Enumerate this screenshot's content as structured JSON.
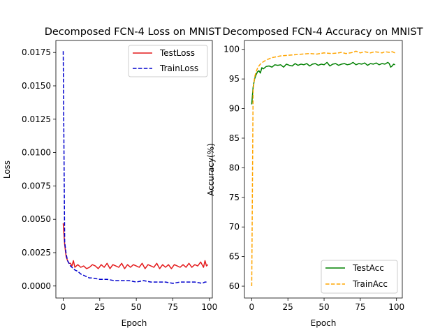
{
  "chart_data": [
    {
      "type": "line",
      "title": "Decomposed FCN-4 Loss on MNIST",
      "xlabel": "Epoch",
      "ylabel": "Loss",
      "xlim": [
        -5,
        102
      ],
      "ylim": [
        -0.0009,
        0.0184
      ],
      "xticks": [
        0,
        25,
        50,
        75,
        100
      ],
      "yticks": [
        0.0,
        0.0025,
        0.005,
        0.0075,
        0.01,
        0.0125,
        0.015,
        0.0175
      ],
      "ytick_labels": [
        "0.0000",
        "0.0025",
        "0.0050",
        "0.0075",
        "0.0100",
        "0.0125",
        "0.0150",
        "0.0175"
      ],
      "grid": false,
      "legend_position": "upper right",
      "series": [
        {
          "name": "TestLoss",
          "color": "#e41a1c",
          "dash": "solid",
          "x": [
            0,
            1,
            2,
            3,
            4,
            5,
            6,
            7,
            8,
            10,
            12,
            14,
            16,
            18,
            20,
            22,
            24,
            26,
            28,
            30,
            32,
            34,
            36,
            38,
            40,
            42,
            44,
            46,
            48,
            50,
            52,
            54,
            56,
            58,
            60,
            62,
            64,
            66,
            68,
            70,
            72,
            74,
            76,
            78,
            80,
            82,
            84,
            86,
            88,
            90,
            92,
            94,
            96,
            97,
            98,
            99
          ],
          "y": [
            0.0047,
            0.0031,
            0.0022,
            0.0019,
            0.0017,
            0.0017,
            0.0015,
            0.0019,
            0.0014,
            0.0016,
            0.0014,
            0.0015,
            0.0013,
            0.0014,
            0.0016,
            0.0015,
            0.0013,
            0.0016,
            0.0014,
            0.0017,
            0.0013,
            0.0016,
            0.0015,
            0.0014,
            0.0017,
            0.0013,
            0.0016,
            0.0014,
            0.0016,
            0.0015,
            0.0014,
            0.0017,
            0.0013,
            0.0016,
            0.0015,
            0.0014,
            0.0017,
            0.0013,
            0.0016,
            0.0014,
            0.0016,
            0.0013,
            0.0016,
            0.0015,
            0.0014,
            0.0016,
            0.0014,
            0.0017,
            0.0014,
            0.0016,
            0.0015,
            0.0018,
            0.0014,
            0.0019,
            0.0015,
            0.0016
          ]
        },
        {
          "name": "TrainLoss",
          "color": "#0000cd",
          "dash": "dashed",
          "x": [
            0,
            1,
            2,
            3,
            4,
            5,
            6,
            8,
            10,
            12,
            14,
            16,
            18,
            20,
            25,
            30,
            35,
            40,
            45,
            50,
            55,
            60,
            65,
            70,
            75,
            80,
            85,
            90,
            95,
            97,
            99
          ],
          "y": [
            0.0176,
            0.0033,
            0.0024,
            0.0019,
            0.0017,
            0.0015,
            0.0014,
            0.0012,
            0.0011,
            0.0009,
            0.0008,
            0.0007,
            0.0006,
            0.0006,
            0.0005,
            0.0005,
            0.0004,
            0.0004,
            0.0004,
            0.0003,
            0.0004,
            0.0003,
            0.0003,
            0.0003,
            0.0002,
            0.0003,
            0.0003,
            0.0003,
            0.0002,
            0.0003,
            0.0003
          ]
        }
      ]
    },
    {
      "type": "line",
      "title": "Decomposed FCN-4 Accuracy on MNIST",
      "xlabel": "Epoch",
      "ylabel": "Accuracy(%)",
      "xlim": [
        -5,
        104
      ],
      "ylim": [
        58,
        101.5
      ],
      "xticks": [
        0,
        25,
        50,
        75,
        100
      ],
      "yticks": [
        60,
        65,
        70,
        75,
        80,
        85,
        90,
        95,
        100
      ],
      "ytick_labels": [
        "60",
        "65",
        "70",
        "75",
        "80",
        "85",
        "90",
        "95",
        "100"
      ],
      "grid": false,
      "legend_position": "lower right",
      "series": [
        {
          "name": "TestAcc",
          "color": "#008000",
          "dash": "solid",
          "x": [
            0,
            1,
            2,
            3,
            4,
            5,
            6,
            7,
            8,
            10,
            12,
            14,
            16,
            18,
            20,
            22,
            24,
            26,
            28,
            30,
            32,
            34,
            36,
            38,
            40,
            42,
            44,
            46,
            48,
            50,
            52,
            54,
            56,
            58,
            60,
            62,
            64,
            66,
            68,
            70,
            72,
            74,
            76,
            78,
            80,
            82,
            84,
            86,
            88,
            90,
            92,
            94,
            95,
            96,
            97,
            98,
            99
          ],
          "y": [
            90.7,
            93.6,
            95.0,
            95.7,
            96.2,
            96.4,
            96.0,
            96.9,
            96.7,
            97.1,
            97.2,
            97.0,
            97.4,
            97.3,
            97.4,
            97.0,
            97.5,
            97.3,
            97.2,
            97.6,
            97.3,
            97.5,
            97.4,
            97.6,
            97.2,
            97.5,
            97.6,
            97.3,
            97.5,
            97.4,
            97.8,
            97.2,
            97.5,
            97.6,
            97.3,
            97.5,
            97.6,
            97.4,
            97.5,
            97.8,
            97.4,
            97.6,
            97.5,
            97.7,
            97.3,
            97.6,
            97.5,
            97.7,
            97.4,
            97.6,
            97.5,
            97.8,
            97.6,
            97.0,
            97.2,
            97.5,
            97.4
          ]
        },
        {
          "name": "TrainAcc",
          "color": "#ffa500",
          "dash": "dashed",
          "x": [
            0,
            1,
            2,
            3,
            4,
            5,
            6,
            8,
            10,
            12,
            14,
            16,
            18,
            20,
            25,
            30,
            35,
            40,
            45,
            50,
            55,
            60,
            62,
            65,
            68,
            70,
            72,
            75,
            78,
            80,
            82,
            85,
            88,
            90,
            92,
            95,
            97,
            99
          ],
          "y": [
            60.0,
            93.0,
            95.3,
            96.2,
            96.8,
            97.2,
            97.5,
            97.9,
            98.2,
            98.4,
            98.6,
            98.7,
            98.8,
            98.9,
            99.0,
            99.1,
            99.2,
            99.3,
            99.2,
            99.4,
            99.3,
            99.4,
            99.5,
            99.3,
            99.4,
            99.5,
            99.7,
            99.4,
            99.6,
            99.5,
            99.4,
            99.6,
            99.5,
            99.4,
            99.6,
            99.5,
            99.6,
            99.4
          ]
        }
      ]
    }
  ]
}
